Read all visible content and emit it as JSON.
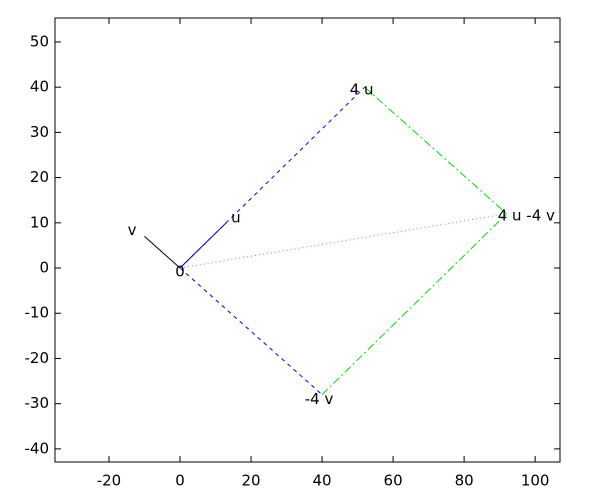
{
  "chart_data": {
    "type": "vector",
    "xlim": [
      -35.2,
      107
    ],
    "ylim": [
      -42.9,
      55.3
    ],
    "xticks": [
      -20,
      0,
      20,
      40,
      60,
      80,
      100
    ],
    "yticks": [
      -40,
      -30,
      -20,
      -10,
      0,
      10,
      20,
      30,
      40,
      50
    ],
    "segments": [
      {
        "x": [
          0,
          13
        ],
        "y": [
          0,
          10
        ],
        "color": "#000080",
        "style": "solid"
      },
      {
        "x": [
          0,
          -10
        ],
        "y": [
          0,
          7
        ],
        "color": "#000000",
        "style": "solid"
      },
      {
        "x": [
          0,
          52
        ],
        "y": [
          0,
          40
        ],
        "color": "#0000ff",
        "style": "dashed"
      },
      {
        "x": [
          0,
          40
        ],
        "y": [
          0,
          -28
        ],
        "color": "#0000ff",
        "style": "dashed"
      },
      {
        "x": [
          52,
          92
        ],
        "y": [
          40,
          12
        ],
        "color": "#00dd00",
        "style": "dashdot"
      },
      {
        "x": [
          40,
          92
        ],
        "y": [
          -28,
          12
        ],
        "color": "#00dd00",
        "style": "dashdot"
      },
      {
        "x": [
          0,
          92
        ],
        "y": [
          0,
          12
        ],
        "color": "#ff6060",
        "style": "dotted"
      }
    ],
    "points": [
      {
        "label": "u",
        "x": 13,
        "y": 10
      },
      {
        "label": "v",
        "x": -10,
        "y": 7
      },
      {
        "label": "0",
        "x": 0,
        "y": 0
      },
      {
        "label": "4 u",
        "x": 52,
        "y": 40
      },
      {
        "label": "-4 v",
        "x": 40,
        "y": -28
      },
      {
        "label": "4 u -4 v",
        "x": 92,
        "y": 12
      }
    ]
  }
}
